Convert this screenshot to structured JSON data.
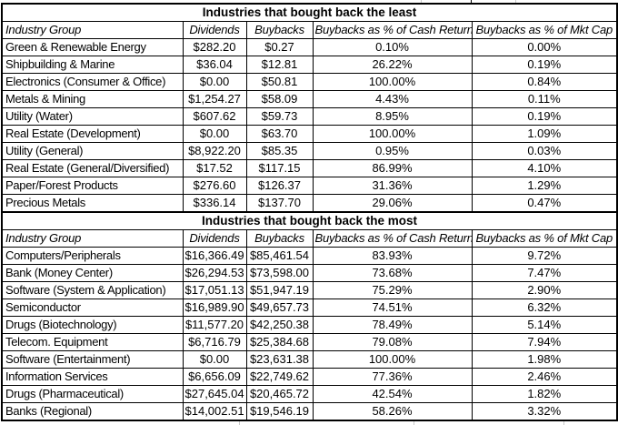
{
  "colors": {
    "background": "#ffffff",
    "border": "#000000",
    "text": "#000000",
    "gridline_stub": "#c9c9c9"
  },
  "chart_data": {
    "type": "table",
    "columns": [
      "Industry Group",
      "Dividends",
      "Buybacks",
      "Buybacks as % of Cash Return",
      "Buybacks as % of Mkt Cap"
    ],
    "sections": [
      {
        "title": "Industries that bought back the least",
        "rows": [
          [
            "Green & Renewable Energy",
            "$282.20",
            "$0.27",
            "0.10%",
            "0.00%"
          ],
          [
            "Shipbuilding & Marine",
            "$36.04",
            "$12.81",
            "26.22%",
            "0.19%"
          ],
          [
            "Electronics (Consumer & Office)",
            "$0.00",
            "$50.81",
            "100.00%",
            "0.84%"
          ],
          [
            "Metals & Mining",
            "$1,254.27",
            "$58.09",
            "4.43%",
            "0.11%"
          ],
          [
            "Utility (Water)",
            "$607.62",
            "$59.73",
            "8.95%",
            "0.19%"
          ],
          [
            "Real Estate (Development)",
            "$0.00",
            "$63.70",
            "100.00%",
            "1.09%"
          ],
          [
            "Utility (General)",
            "$8,922.20",
            "$85.35",
            "0.95%",
            "0.03%"
          ],
          [
            "Real Estate (General/Diversified)",
            "$17.52",
            "$117.15",
            "86.99%",
            "4.10%"
          ],
          [
            "Paper/Forest Products",
            "$276.60",
            "$126.37",
            "31.36%",
            "1.29%"
          ],
          [
            "Precious Metals",
            "$336.14",
            "$137.70",
            "29.06%",
            "0.47%"
          ]
        ]
      },
      {
        "title": "Industries that bought back the most",
        "rows": [
          [
            "Computers/Peripherals",
            "$16,366.49",
            "$85,461.54",
            "83.93%",
            "9.72%"
          ],
          [
            "Bank (Money Center)",
            "$26,294.53",
            "$73,598.00",
            "73.68%",
            "7.47%"
          ],
          [
            "Software (System & Application)",
            "$17,051.13",
            "$51,947.19",
            "75.29%",
            "2.90%"
          ],
          [
            "Semiconductor",
            "$16,989.90",
            "$49,657.73",
            "74.51%",
            "6.32%"
          ],
          [
            "Drugs (Biotechnology)",
            "$11,577.20",
            "$42,250.38",
            "78.49%",
            "5.14%"
          ],
          [
            "Telecom. Equipment",
            "$6,716.79",
            "$25,384.68",
            "79.08%",
            "7.94%"
          ],
          [
            "Software (Entertainment)",
            "$0.00",
            "$23,631.38",
            "100.00%",
            "1.98%"
          ],
          [
            "Information Services",
            "$6,656.09",
            "$22,749.62",
            "77.36%",
            "2.46%"
          ],
          [
            "Drugs (Pharmaceutical)",
            "$27,645.04",
            "$20,465.72",
            "42.54%",
            "1.82%"
          ],
          [
            "Banks (Regional)",
            "$14,002.51",
            "$19,546.19",
            "58.26%",
            "3.32%"
          ]
        ]
      }
    ]
  }
}
